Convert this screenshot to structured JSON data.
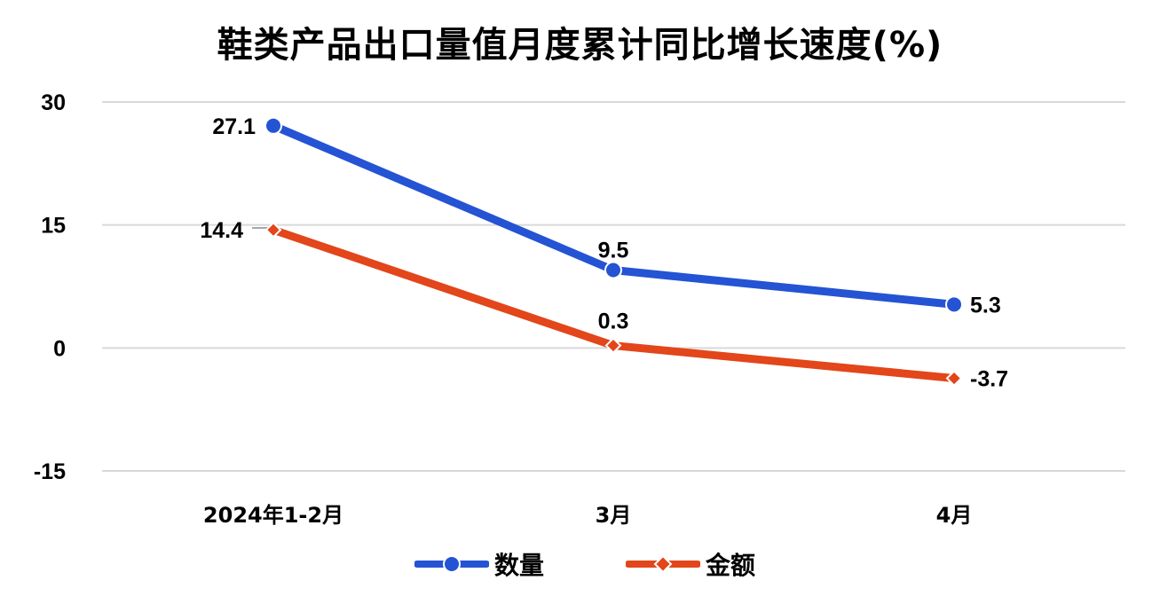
{
  "title": "鞋类产品出口量值月度累计同比增长速度(%)",
  "chart_data": {
    "type": "line",
    "title": "鞋类产品出口量值月度累计同比增长速度(%)",
    "categories": [
      "2024年1-2月",
      "3月",
      "4月"
    ],
    "series": [
      {
        "name": "数量",
        "values": [
          27.1,
          9.5,
          5.3
        ],
        "color": "#2453D4",
        "marker": "circle"
      },
      {
        "name": "金额",
        "values": [
          14.4,
          0.3,
          -3.7
        ],
        "color": "#E2461A",
        "marker": "diamond"
      }
    ],
    "xlabel": "",
    "ylabel": "",
    "ylim": [
      -15,
      30
    ],
    "yticks": [
      30,
      15,
      0,
      -15
    ],
    "grid": true,
    "legend_position": "bottom"
  },
  "legend": {
    "items": [
      {
        "label": "数量",
        "color": "#2453D4"
      },
      {
        "label": "金额",
        "color": "#E2461A"
      }
    ]
  }
}
